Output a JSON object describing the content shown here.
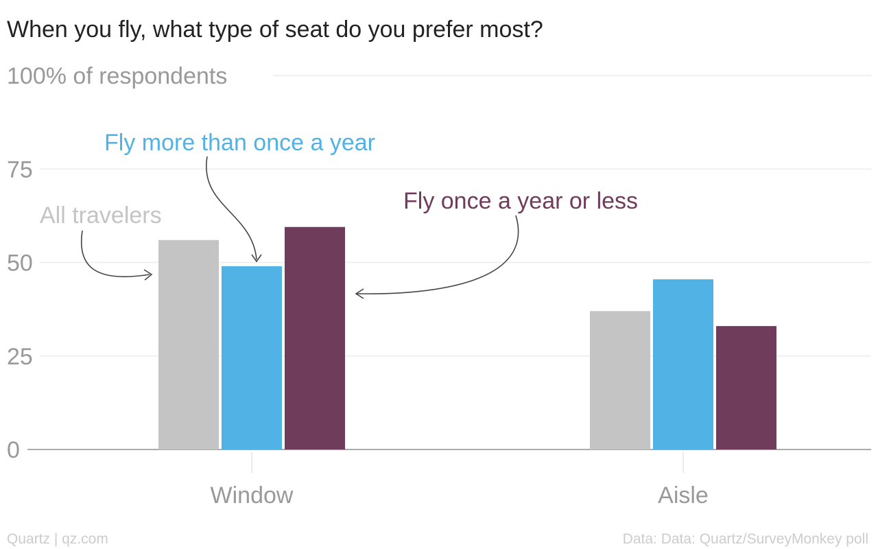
{
  "chart_data": {
    "type": "bar",
    "title": "When you fly, what type of seat do you prefer most?",
    "ylabel": "100% of respondents",
    "xlabel": "",
    "ylim": [
      0,
      100
    ],
    "yticks": [
      0,
      25,
      50,
      75
    ],
    "top_tick_label": "100% of respondents",
    "categories": [
      "Window",
      "Aisle"
    ],
    "series": [
      {
        "name": "All travelers",
        "color": "#c4c4c4",
        "values": [
          56,
          37
        ]
      },
      {
        "name": "Fly more than once a year",
        "color": "#51b2e5",
        "values": [
          49,
          45.5
        ]
      },
      {
        "name": "Fly once a year or less",
        "color": "#703c5c",
        "values": [
          59.5,
          33
        ]
      }
    ],
    "grid": true,
    "legend": "annotated-labels"
  },
  "footer": {
    "left": "Quartz | qz.com",
    "right": "Data: Data: Quartz/SurveyMonkey poll"
  }
}
